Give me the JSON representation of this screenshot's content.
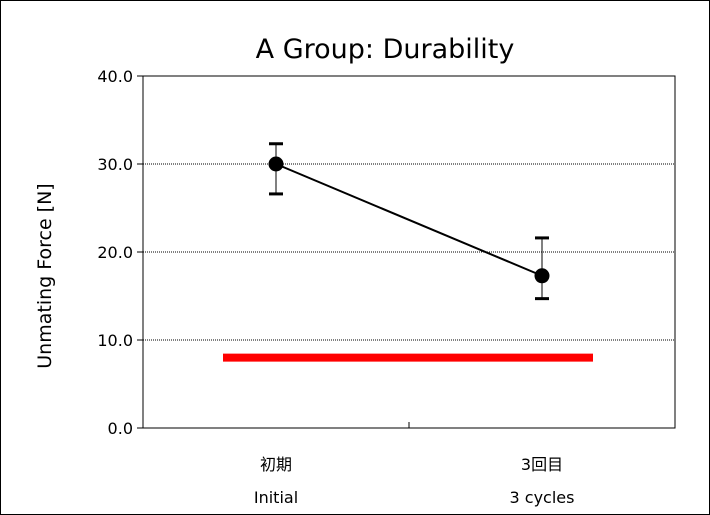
{
  "chart_data": {
    "type": "line",
    "title": "A Group: Durability",
    "ylabel": "Unmating Force [N]",
    "xlabel": "",
    "ylim": [
      0,
      40
    ],
    "yticks": [
      "0.0",
      "10.0",
      "20.0",
      "30.0",
      "40.0"
    ],
    "ytick_values": [
      0,
      10,
      20,
      30,
      40
    ],
    "grid": "horizontal dotted",
    "categories": [
      {
        "label_ja": "初期",
        "label_en": "Initial"
      },
      {
        "label_ja": "3回目",
        "label_en": "3 cycles"
      }
    ],
    "series": [
      {
        "values": [
          30.0,
          17.3
        ],
        "error_low": [
          26.6,
          14.7
        ],
        "error_high": [
          32.3,
          21.6
        ],
        "color": "#000000"
      }
    ],
    "reference_line": {
      "value": 8.0,
      "color": "#ff0000"
    }
  }
}
